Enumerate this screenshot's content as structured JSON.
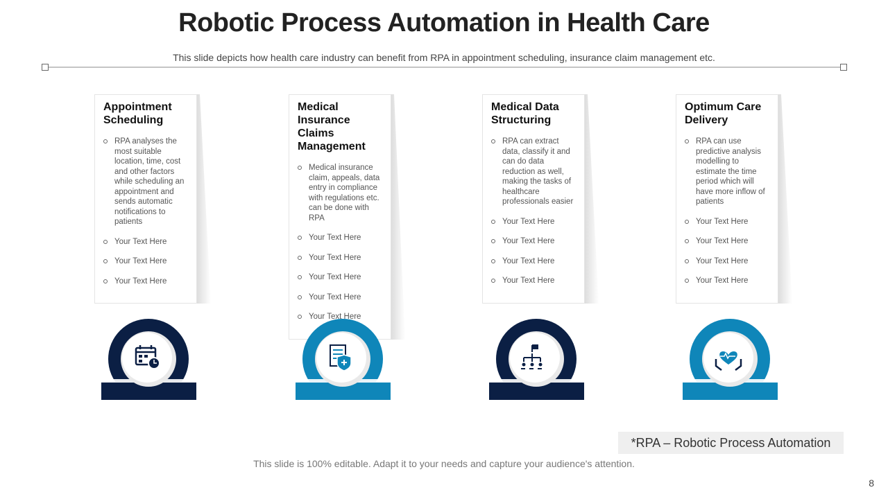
{
  "header": {
    "title": "Robotic Process Automation in Health Care",
    "subtitle": "This slide depicts how health care industry can benefit from RPA in appointment scheduling, insurance claim management etc."
  },
  "cards": [
    {
      "title": "Appointment Scheduling",
      "bullets": [
        "RPA analyses the most suitable location, time, cost and other factors while scheduling an appointment and sends automatic notifications to patients",
        "Your Text Here",
        "Your Text Here",
        "Your Text Here"
      ]
    },
    {
      "title": "Medical Insurance Claims Management",
      "bullets": [
        "Medical insurance claim, appeals, data entry in compliance with regulations etc. can be done with RPA",
        "Your Text Here",
        "Your Text Here",
        "Your Text Here",
        "Your Text Here",
        "Your Text Here"
      ]
    },
    {
      "title": "Medical Data Structuring",
      "bullets": [
        "RPA can extract data, classify it and can do data reduction as well, making the tasks of healthcare professionals easier",
        "Your Text Here",
        "Your Text Here",
        "Your Text Here",
        "Your Text Here"
      ]
    },
    {
      "title": "Optimum Care Delivery",
      "bullets": [
        "RPA can use predictive analysis modelling to estimate the time period which will have more inflow of patients",
        "Your Text Here",
        "Your Text Here",
        "Your Text Here",
        "Your Text Here"
      ]
    }
  ],
  "footnote": "*RPA – Robotic Process Automation",
  "footer": "This slide is 100% editable. Adapt it to your needs and capture your audience's attention.",
  "page_number": "8"
}
